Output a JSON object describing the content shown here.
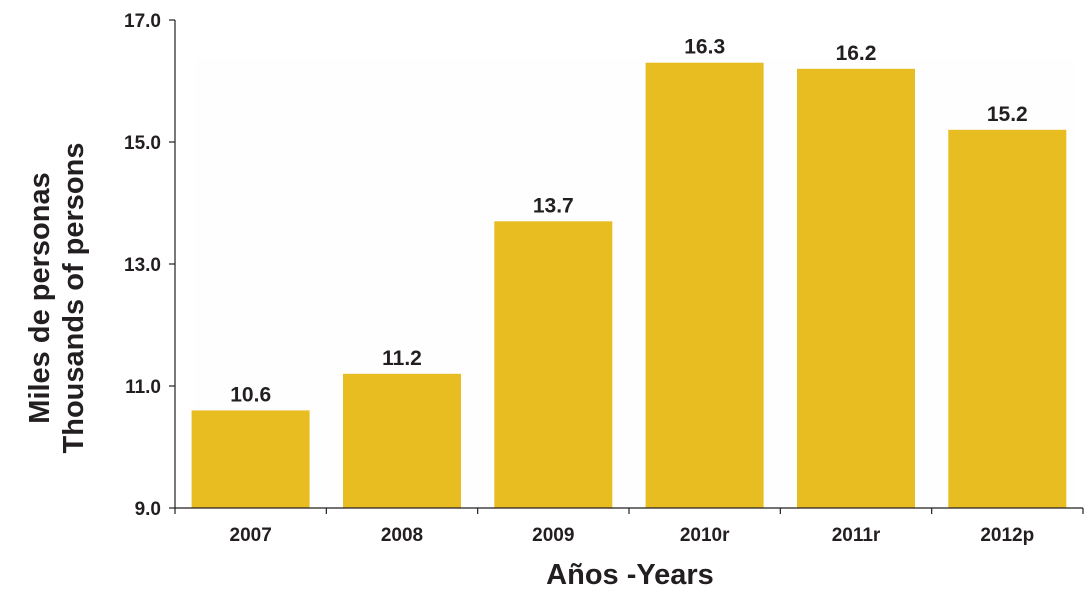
{
  "chart_data": {
    "type": "bar",
    "categories": [
      "2007",
      "2008",
      "2009",
      "2010r",
      "2011r",
      "2012p"
    ],
    "values": [
      10.6,
      11.2,
      13.7,
      16.3,
      16.2,
      15.2
    ],
    "value_labels": [
      "10.6",
      "11.2",
      "13.7",
      "16.3",
      "16.2",
      "15.2"
    ],
    "ylim": [
      9.0,
      17.0
    ],
    "yticks": [
      9.0,
      11.0,
      13.0,
      15.0,
      17.0
    ],
    "ytick_labels": [
      "9.0",
      "11.0",
      "13.0",
      "15.0",
      "17.0"
    ],
    "xlabel": "Años -Years",
    "ylabel_line1": "Miles de personas",
    "ylabel_line2": "Thousands of persons",
    "grid": false,
    "legend": "none",
    "colors": {
      "bar": "#e8bd21",
      "axis": "#231f20",
      "text": "#231f20"
    }
  }
}
